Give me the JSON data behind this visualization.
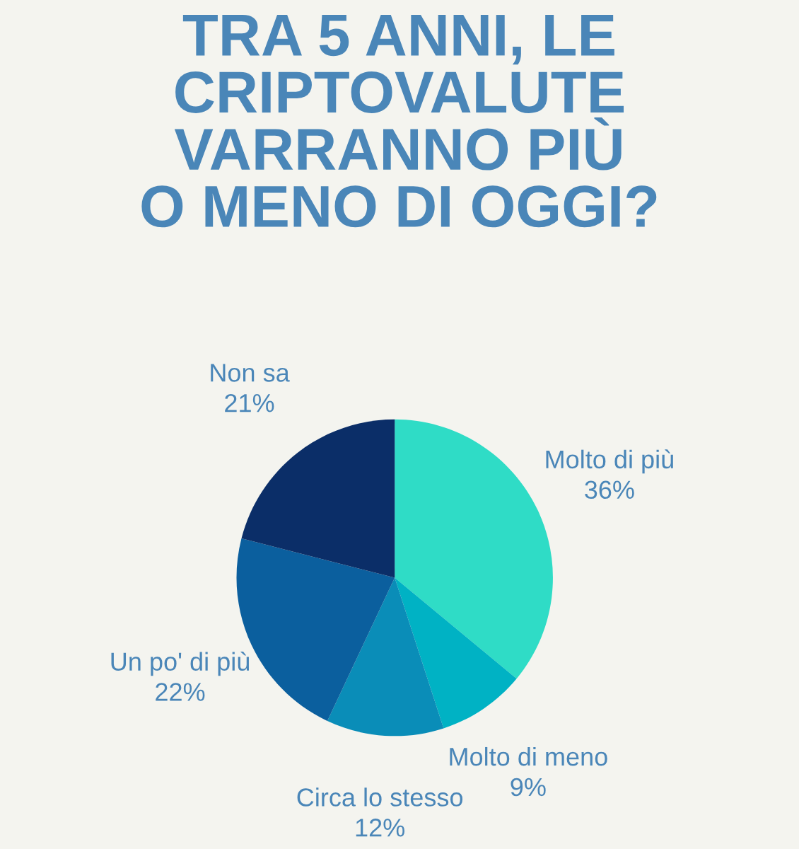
{
  "chart_data": {
    "type": "pie",
    "title": "TRA 5 ANNI, LE\nCRIPTOVALUTE\nVARRANNO PIÙ\nO MENO DI OGGI?",
    "categories": [
      "Molto di più",
      "Molto di meno",
      "Circa lo stesso",
      "Un po' di più",
      "Non sa"
    ],
    "values": [
      36,
      9,
      12,
      22,
      21
    ],
    "value_labels": [
      "36%",
      "9%",
      "12%",
      "22%",
      "21%"
    ],
    "colors": [
      "#2fdcc6",
      "#00b2c4",
      "#0a8db8",
      "#0b5f9e",
      "#0b2e68"
    ]
  }
}
